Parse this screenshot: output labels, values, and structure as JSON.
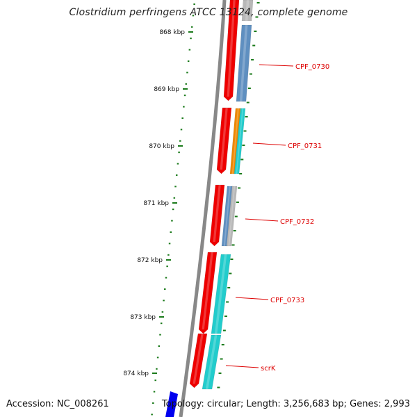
{
  "title": "Clostridium perfringens ATCC 13124, complete genome",
  "footer": {
    "accession": "Accession: NC_008261",
    "info": "Topology: circular; Length: 3,256,683 bp; Genes: 2,993"
  },
  "colors": {
    "backbone": "#888888",
    "tick": "#1a7a1a",
    "label": "#dd0000",
    "forward_strand": "#ee0000",
    "blue_gene": "#5f8fc0",
    "cyan_gene": "#22cccc",
    "orange_gene": "#ee8800",
    "gray_gene": "#b8b8b8",
    "marker": "#0000ee"
  },
  "ticks": [
    {
      "label": "868 kbp",
      "kbp": 868
    },
    {
      "label": "869 kbp",
      "kbp": 869
    },
    {
      "label": "870 kbp",
      "kbp": 870
    },
    {
      "label": "871 kbp",
      "kbp": 871
    },
    {
      "label": "872 kbp",
      "kbp": 872
    },
    {
      "label": "873 kbp",
      "kbp": 873
    },
    {
      "label": "874 kbp",
      "kbp": 874
    }
  ],
  "genes": [
    {
      "name": "CPF_0730"
    },
    {
      "name": "CPF_0731"
    },
    {
      "name": "CPF_0732"
    },
    {
      "name": "CPF_0733"
    },
    {
      "name": "scrK"
    }
  ]
}
